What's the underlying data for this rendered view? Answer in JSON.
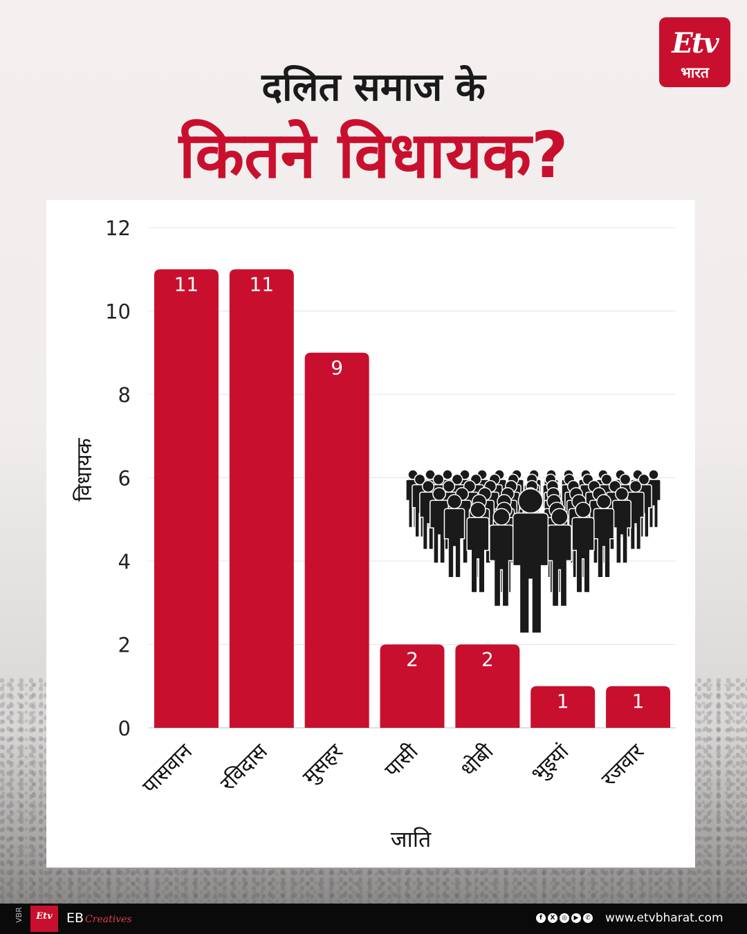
{
  "brand": {
    "logo_mark": "Etv",
    "logo_text": "भारत",
    "footer_side": "VBR",
    "footer_mark": "Etv",
    "footer_eb": "EB",
    "footer_creatives": "Creatives",
    "footer_url": "www.etvbharat.com",
    "social_icons": [
      "facebook-icon",
      "x-icon",
      "instagram-icon",
      "youtube-icon",
      "whatsapp-icon"
    ],
    "accent": "#c8102e"
  },
  "header": {
    "line1": "दलित समाज के",
    "line2": "कितने विधायक?"
  },
  "chart_data": {
    "type": "bar",
    "title": "",
    "xlabel": "जाति",
    "ylabel": "विधायक",
    "categories": [
      "पासवान",
      "रविदास",
      "मुसहर",
      "पासी",
      "धोबी",
      "भुइयां",
      "रजवार"
    ],
    "values": [
      11,
      11,
      9,
      2,
      2,
      1,
      1
    ],
    "ylim": [
      0,
      12
    ],
    "yticks": [
      0,
      2,
      4,
      6,
      8,
      10,
      12
    ],
    "grid": true,
    "bar_color": "#c8102e",
    "data_labels": true
  }
}
